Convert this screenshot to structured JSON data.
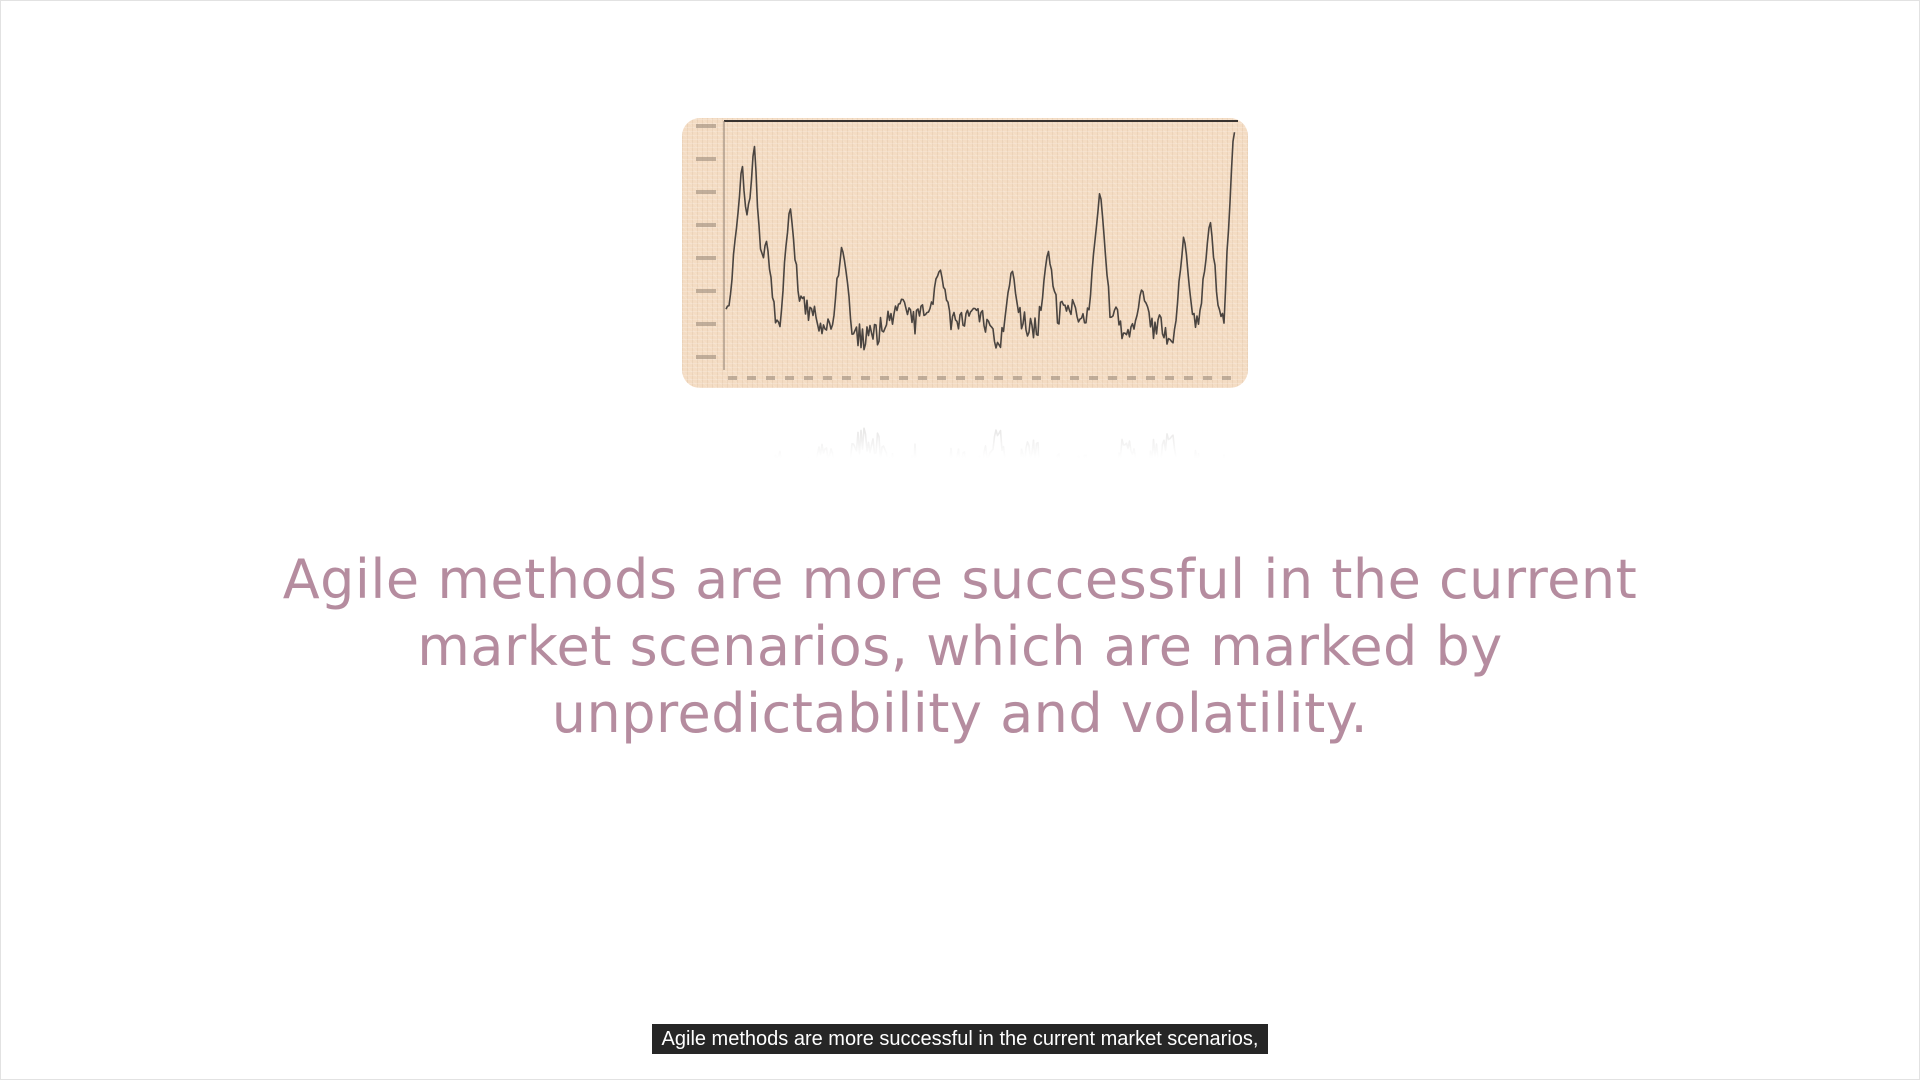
{
  "slide": {
    "headline": "Agile methods are more successful in the current market scenarios, which are marked by unpredictability and volatility.",
    "colors": {
      "headline": "#b58c9f",
      "chart_bg": "#f4dcc3",
      "chart_line": "#4a4440",
      "caption_bg": "#262626",
      "caption_text": "#ffffff"
    }
  },
  "subtitle": {
    "text": "Agile methods are more successful in the current market scenarios,"
  }
}
